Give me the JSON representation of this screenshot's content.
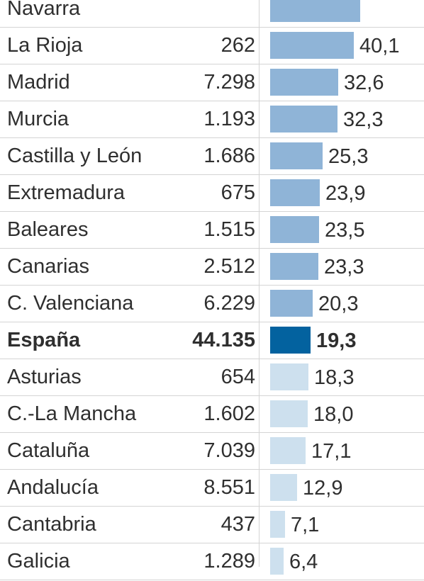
{
  "colors": {
    "high": "#8fb4d7",
    "highlight": "#03629f",
    "low": "#cde0ee"
  },
  "chart_data": {
    "type": "bar",
    "orientation": "horizontal",
    "columns": [
      "",
      "",
      ""
    ],
    "categories": [
      "Navarra",
      "La Rioja",
      "Madrid",
      "Murcia",
      "Castilla y León",
      "Extremadura",
      "Baleares",
      "Canarias",
      "C. Valenciana",
      "España",
      "Asturias",
      "C.-La Mancha",
      "Cataluña",
      "Andalucía",
      "Cantabria",
      "Galicia"
    ],
    "counts": [
      "",
      "262",
      "7.298",
      "1.193",
      "1.686",
      "675",
      "1.515",
      "2.512",
      "6.229",
      "44.135",
      "654",
      "1.602",
      "7.039",
      "8.551",
      "437",
      "1.289"
    ],
    "values": [
      43.2,
      40.1,
      32.6,
      32.3,
      25.3,
      23.9,
      23.5,
      23.3,
      20.3,
      19.3,
      18.3,
      18.0,
      17.1,
      12.9,
      7.1,
      6.4
    ],
    "value_labels": [
      "",
      "40,1",
      "32,6",
      "32,3",
      "25,3",
      "23,9",
      "23,5",
      "23,3",
      "20,3",
      "19,3",
      "18,3",
      "18,0",
      "17,1",
      "12,9",
      "7,1",
      "6,4"
    ],
    "highlight": "España",
    "xlim": [
      0,
      43.2
    ]
  }
}
